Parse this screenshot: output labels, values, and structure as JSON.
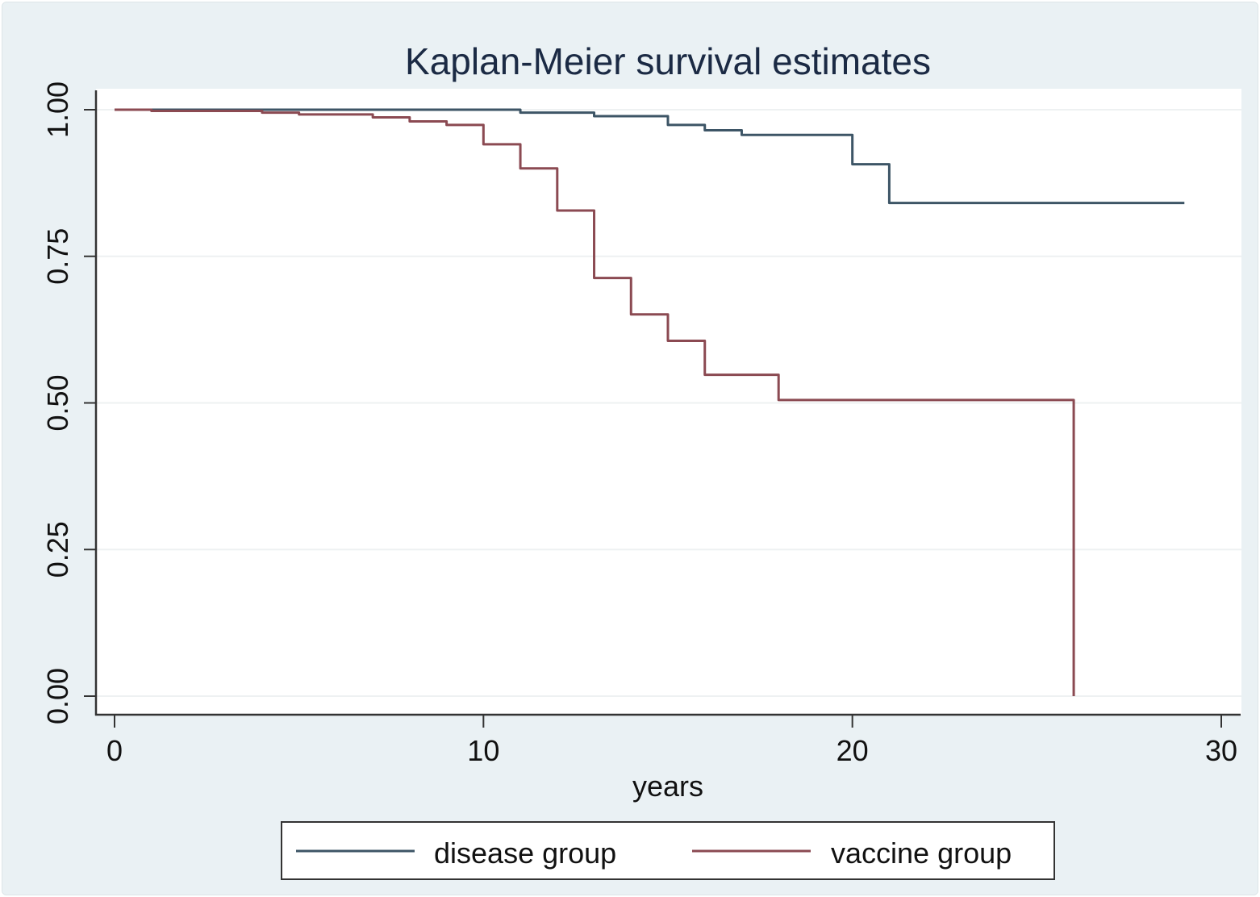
{
  "chart_data": {
    "type": "line",
    "subtype": "step",
    "title": "Kaplan-Meier survival estimates",
    "xlabel": "years",
    "ylabel": "",
    "xlim": [
      0,
      30
    ],
    "ylim": [
      0,
      1
    ],
    "xticks": [
      0,
      10,
      20,
      30
    ],
    "xtick_labels": [
      "0",
      "10",
      "20",
      "30"
    ],
    "yticks": [
      0,
      0.25,
      0.5,
      0.75,
      1
    ],
    "ytick_labels": [
      "0.00",
      "0.25",
      "0.50",
      "0.75",
      "1.00"
    ],
    "grid": "horizontal",
    "legend": {
      "placement": "bottom",
      "entries": [
        "disease group",
        "vaccine group"
      ]
    },
    "series": [
      {
        "name": "disease group",
        "color": "#3d5566",
        "x": [
          0,
          11,
          13,
          15,
          16,
          17,
          20,
          21,
          29
        ],
        "y": [
          1.0,
          0.995,
          0.989,
          0.974,
          0.965,
          0.957,
          0.907,
          0.841,
          0.841
        ]
      },
      {
        "name": "vaccine group",
        "color": "#8b4a52",
        "x": [
          0,
          1,
          4,
          5,
          7,
          8,
          9,
          10,
          11,
          12,
          13,
          14,
          15,
          16,
          18,
          26
        ],
        "y": [
          1.0,
          0.998,
          0.995,
          0.992,
          0.987,
          0.98,
          0.974,
          0.941,
          0.9,
          0.828,
          0.713,
          0.651,
          0.606,
          0.548,
          0.505,
          0.0
        ]
      }
    ]
  }
}
